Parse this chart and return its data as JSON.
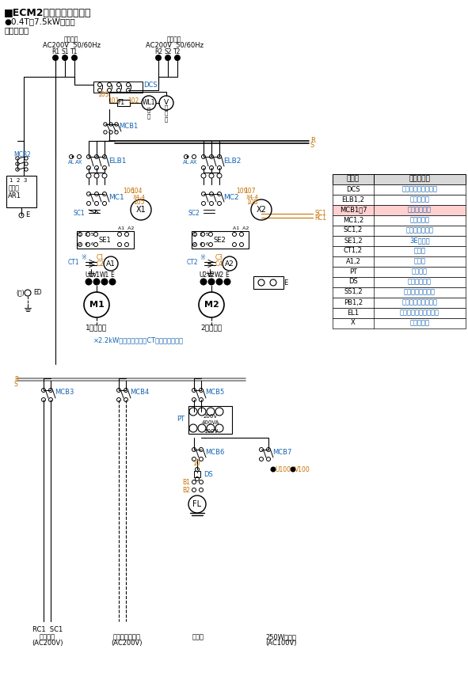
{
  "title": "■ECM2形制御盤接続図例",
  "subtitle1": "●0.4T～7.5kW標準品",
  "subtitle2": "〈参考図〉",
  "power1_label": "使用電源",
  "power2_label": "非常電源",
  "power_spec": "AC200V  50/60Hz",
  "label_color": "#1464b4",
  "orange_color": "#c87000",
  "black": "#000000",
  "gray": "#808080",
  "note": "×2.2kW以下の電流計にCTは付きません。",
  "table_rows": [
    [
      "DCS",
      "切換カバースイッチ"
    ],
    [
      "ELB1,2",
      "漏電遷断器"
    ],
    [
      "MCB1）7",
      "配線用遷断器"
    ],
    [
      "MC1,2",
      "電磁接触器"
    ],
    [
      "SC1,2",
      "進相コンデンサ"
    ],
    [
      "SE1,2",
      "3Eリレー"
    ],
    [
      "CT1,2",
      "変流器"
    ],
    [
      "A1,2",
      "電流計"
    ],
    [
      "PT",
      "トランス"
    ],
    [
      "DS",
      "ドアスイッチ"
    ],
    [
      "SS1,2",
      "セレクトスイッチ"
    ],
    [
      "PB1,2",
      "押しボタンスイッチ"
    ],
    [
      "EL1",
      "フロートレススイッチ"
    ],
    [
      "X",
      "補助リレー"
    ]
  ],
  "bottom_labels": [
    [
      "RC1  SC1",
      "制御回路",
      "(AC200V)"
    ],
    [
      "通報装置用電源",
      "(AC200V)"
    ],
    [
      "蛍光灯"
    ],
    [
      "250W端子台",
      "(AC100V)"
    ]
  ]
}
